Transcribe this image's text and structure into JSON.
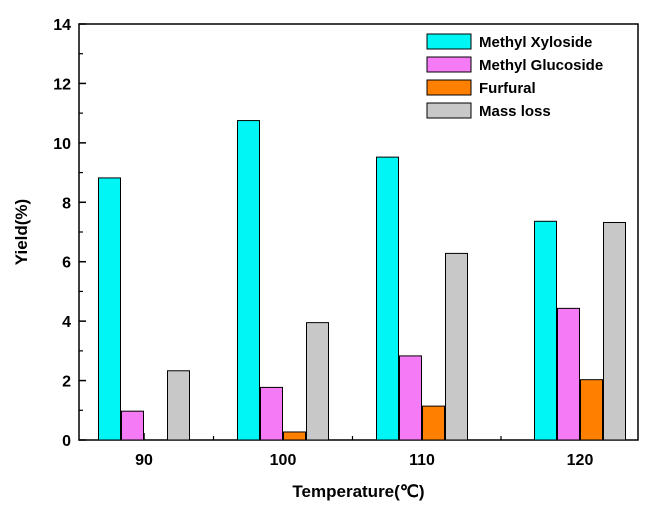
{
  "chart_data": {
    "type": "bar",
    "title": "",
    "xlabel": "Temperature(℃)",
    "ylabel": "Yield(%)",
    "categories": [
      "90",
      "100",
      "110",
      "120"
    ],
    "ylim": [
      0,
      14
    ],
    "yticks": [
      0,
      2,
      4,
      6,
      8,
      10,
      12,
      14
    ],
    "grid": false,
    "legend_position": "top-right",
    "series": [
      {
        "name": "Methyl Xyloside",
        "color": "#00f5f5",
        "values": [
          8.82,
          10.75,
          9.52,
          7.36
        ]
      },
      {
        "name": "Methyl Glucoside",
        "color": "#f57af5",
        "values": [
          0.97,
          1.77,
          2.83,
          4.43
        ]
      },
      {
        "name": "Furfural",
        "color": "#ff7f00",
        "values": [
          0.0,
          0.27,
          1.14,
          2.03
        ]
      },
      {
        "name": "Mass loss",
        "color": "#c8c8c8",
        "values": [
          2.33,
          3.95,
          6.28,
          7.32
        ]
      }
    ]
  }
}
